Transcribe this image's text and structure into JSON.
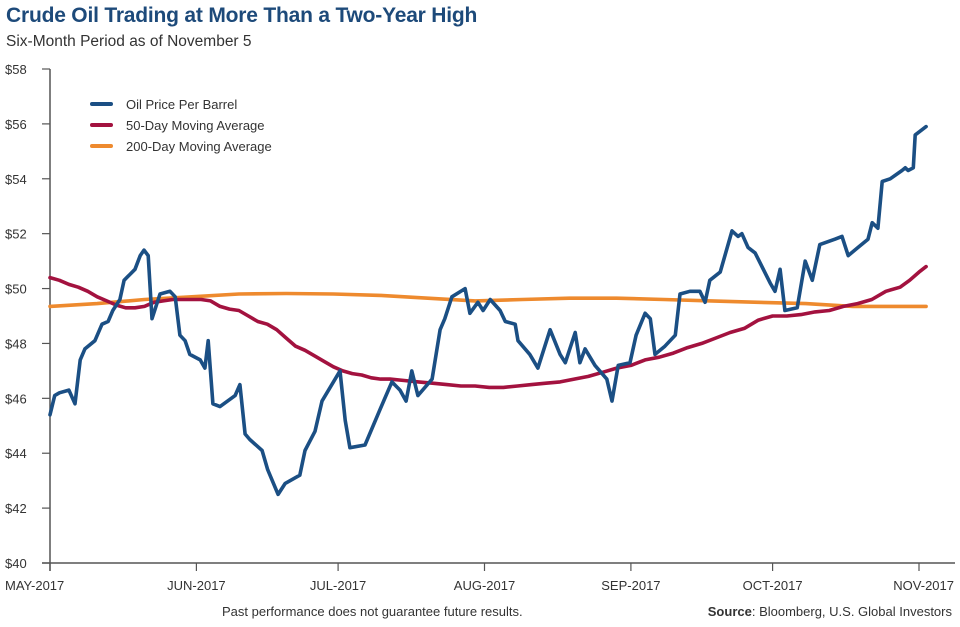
{
  "chart_data": {
    "type": "line",
    "title": "Crude Oil Trading at More Than a Two-Year High",
    "subtitle": "Six-Month Period as of November 5",
    "xlabel": "",
    "ylabel": "",
    "x_unit": "days since May 1, 2017",
    "xlim": [
      0,
      191
    ],
    "ylim": [
      40,
      58
    ],
    "y_ticks": [
      40,
      42,
      44,
      46,
      48,
      50,
      52,
      54,
      56,
      58
    ],
    "y_tick_labels": [
      "$40",
      "$42",
      "$44",
      "$46",
      "$48",
      "$50",
      "$52",
      "$54",
      "$56",
      "$58"
    ],
    "x_ticks": [
      0,
      31,
      61,
      92,
      123,
      153,
      184
    ],
    "x_tick_labels": [
      "MAY-2017",
      "JUN-2017",
      "JUL-2017",
      "AUG-2017",
      "SEP-2017",
      "OCT-2017",
      "NOV-2017"
    ],
    "grid": false,
    "legend_position": "top-left",
    "series": [
      {
        "name": "Oil Price Per Barrel",
        "color": "#1b4f84",
        "points": [
          [
            0,
            45.4
          ],
          [
            1,
            46.1
          ],
          [
            2,
            46.2
          ],
          [
            4,
            46.3
          ],
          [
            5.3,
            45.8
          ],
          [
            6.4,
            47.4
          ],
          [
            7.4,
            47.8
          ],
          [
            9.5,
            48.1
          ],
          [
            11,
            48.7
          ],
          [
            12.3,
            48.8
          ],
          [
            13.3,
            49.2
          ],
          [
            14.8,
            49.6
          ],
          [
            15.7,
            50.3
          ],
          [
            18,
            50.7
          ],
          [
            19.1,
            51.2
          ],
          [
            19.9,
            51.4
          ],
          [
            20.8,
            51.2
          ],
          [
            21.6,
            48.9
          ],
          [
            23.3,
            49.8
          ],
          [
            25.4,
            49.9
          ],
          [
            26.5,
            49.7
          ],
          [
            27.5,
            48.3
          ],
          [
            28.6,
            48.1
          ],
          [
            29.6,
            47.6
          ],
          [
            31.8,
            47.4
          ],
          [
            32.8,
            47.1
          ],
          [
            33.5,
            48.1
          ],
          [
            34.5,
            45.8
          ],
          [
            36,
            45.7
          ],
          [
            39.2,
            46.1
          ],
          [
            40.2,
            46.5
          ],
          [
            41.3,
            44.7
          ],
          [
            42.3,
            44.5
          ],
          [
            44.9,
            44.1
          ],
          [
            46.1,
            43.4
          ],
          [
            48.3,
            42.5
          ],
          [
            49.8,
            42.9
          ],
          [
            52.9,
            43.2
          ],
          [
            54,
            44.1
          ],
          [
            56.1,
            44.8
          ],
          [
            57.6,
            45.9
          ],
          [
            61.4,
            47.0
          ],
          [
            62.5,
            45.2
          ],
          [
            63.5,
            44.2
          ],
          [
            66.7,
            44.3
          ],
          [
            69.9,
            45.6
          ],
          [
            72.4,
            46.6
          ],
          [
            74.1,
            46.3
          ],
          [
            75.4,
            45.9
          ],
          [
            76.6,
            47.0
          ],
          [
            77.9,
            46.1
          ],
          [
            80.9,
            46.7
          ],
          [
            82.6,
            48.5
          ],
          [
            83.6,
            48.9
          ],
          [
            85.1,
            49.7
          ],
          [
            87.9,
            50.0
          ],
          [
            88.9,
            49.1
          ],
          [
            90.6,
            49.5
          ],
          [
            91.7,
            49.2
          ],
          [
            93.2,
            49.6
          ],
          [
            95.3,
            49.2
          ],
          [
            96.4,
            48.8
          ],
          [
            98.5,
            48.7
          ],
          [
            99.1,
            48.1
          ],
          [
            101.6,
            47.6
          ],
          [
            103.3,
            47.1
          ],
          [
            105.9,
            48.5
          ],
          [
            108,
            47.6
          ],
          [
            109.1,
            47.3
          ],
          [
            111.2,
            48.4
          ],
          [
            112.2,
            47.3
          ],
          [
            113.3,
            47.8
          ],
          [
            115.4,
            47.2
          ],
          [
            117.9,
            46.7
          ],
          [
            119,
            45.9
          ],
          [
            120.3,
            47.2
          ],
          [
            122.8,
            47.3
          ],
          [
            124.1,
            48.3
          ],
          [
            126,
            49.1
          ],
          [
            127.1,
            48.9
          ],
          [
            128.1,
            47.6
          ],
          [
            130.2,
            47.9
          ],
          [
            132.4,
            48.3
          ],
          [
            133.4,
            49.8
          ],
          [
            135.5,
            49.9
          ],
          [
            137.6,
            49.9
          ],
          [
            138.7,
            49.5
          ],
          [
            139.7,
            50.3
          ],
          [
            141.9,
            50.6
          ],
          [
            144.4,
            52.1
          ],
          [
            145.7,
            51.9
          ],
          [
            146.5,
            52.0
          ],
          [
            147.8,
            51.5
          ],
          [
            149.3,
            51.3
          ],
          [
            152.5,
            50.2
          ],
          [
            153.5,
            49.9
          ],
          [
            154.6,
            50.7
          ],
          [
            155.6,
            49.2
          ],
          [
            158.2,
            49.3
          ],
          [
            159.9,
            51.0
          ],
          [
            161.4,
            50.3
          ],
          [
            163,
            51.6
          ],
          [
            166.2,
            51.8
          ],
          [
            167.7,
            51.9
          ],
          [
            169,
            51.2
          ],
          [
            171.1,
            51.5
          ],
          [
            173.2,
            51.8
          ],
          [
            174.1,
            52.4
          ],
          [
            175.3,
            52.2
          ],
          [
            176.2,
            53.9
          ],
          [
            177.9,
            54.0
          ],
          [
            180.4,
            54.3
          ],
          [
            181.1,
            54.4
          ],
          [
            181.7,
            54.3
          ],
          [
            182.8,
            54.4
          ],
          [
            183.2,
            55.6
          ],
          [
            185.5,
            55.9
          ]
        ]
      },
      {
        "name": "50-Day Moving Average",
        "color": "#a3123f",
        "points": [
          [
            0,
            50.4
          ],
          [
            2,
            50.3
          ],
          [
            4,
            50.15
          ],
          [
            6,
            50.05
          ],
          [
            8,
            49.9
          ],
          [
            10,
            49.7
          ],
          [
            12,
            49.55
          ],
          [
            14,
            49.4
          ],
          [
            16,
            49.3
          ],
          [
            18,
            49.3
          ],
          [
            20,
            49.35
          ],
          [
            22,
            49.5
          ],
          [
            24,
            49.55
          ],
          [
            26,
            49.6
          ],
          [
            28,
            49.6
          ],
          [
            30,
            49.6
          ],
          [
            32,
            49.6
          ],
          [
            34,
            49.55
          ],
          [
            36,
            49.35
          ],
          [
            38,
            49.25
          ],
          [
            40,
            49.2
          ],
          [
            42,
            49.0
          ],
          [
            44,
            48.8
          ],
          [
            46,
            48.7
          ],
          [
            48,
            48.5
          ],
          [
            50,
            48.2
          ],
          [
            52,
            47.9
          ],
          [
            54,
            47.75
          ],
          [
            56,
            47.55
          ],
          [
            58,
            47.35
          ],
          [
            60,
            47.15
          ],
          [
            62,
            47.0
          ],
          [
            64,
            46.9
          ],
          [
            66,
            46.85
          ],
          [
            68,
            46.75
          ],
          [
            70,
            46.7
          ],
          [
            72,
            46.7
          ],
          [
            75,
            46.65
          ],
          [
            78,
            46.6
          ],
          [
            81,
            46.55
          ],
          [
            84,
            46.5
          ],
          [
            87,
            46.45
          ],
          [
            90,
            46.45
          ],
          [
            93,
            46.4
          ],
          [
            96,
            46.4
          ],
          [
            99,
            46.45
          ],
          [
            102,
            46.5
          ],
          [
            105,
            46.55
          ],
          [
            108,
            46.6
          ],
          [
            111,
            46.7
          ],
          [
            114,
            46.8
          ],
          [
            117,
            46.95
          ],
          [
            120,
            47.1
          ],
          [
            123,
            47.2
          ],
          [
            126,
            47.4
          ],
          [
            129,
            47.5
          ],
          [
            132,
            47.65
          ],
          [
            135,
            47.85
          ],
          [
            138,
            48.0
          ],
          [
            141,
            48.2
          ],
          [
            144,
            48.4
          ],
          [
            147,
            48.55
          ],
          [
            150,
            48.85
          ],
          [
            153,
            49.0
          ],
          [
            156,
            49.0
          ],
          [
            159,
            49.05
          ],
          [
            162,
            49.15
          ],
          [
            165,
            49.2
          ],
          [
            168,
            49.35
          ],
          [
            171,
            49.45
          ],
          [
            174,
            49.6
          ],
          [
            177,
            49.9
          ],
          [
            180,
            50.05
          ],
          [
            182,
            50.3
          ],
          [
            184,
            50.6
          ],
          [
            185.5,
            50.8
          ]
        ]
      },
      {
        "name": "200-Day Moving Average",
        "color": "#ee8a2e",
        "points": [
          [
            0,
            49.35
          ],
          [
            10,
            49.45
          ],
          [
            20,
            49.6
          ],
          [
            30,
            49.7
          ],
          [
            40,
            49.8
          ],
          [
            50,
            49.82
          ],
          [
            60,
            49.8
          ],
          [
            70,
            49.75
          ],
          [
            80,
            49.65
          ],
          [
            90,
            49.55
          ],
          [
            100,
            49.6
          ],
          [
            110,
            49.65
          ],
          [
            120,
            49.65
          ],
          [
            130,
            49.6
          ],
          [
            140,
            49.55
          ],
          [
            150,
            49.5
          ],
          [
            160,
            49.45
          ],
          [
            170,
            49.35
          ],
          [
            180,
            49.35
          ],
          [
            185.5,
            49.35
          ]
        ]
      }
    ]
  },
  "footer": {
    "note": "Past performance does not guarantee future results.",
    "source_label": "Source",
    "source_text": ": Bloomberg, U.S. Global Investors"
  }
}
